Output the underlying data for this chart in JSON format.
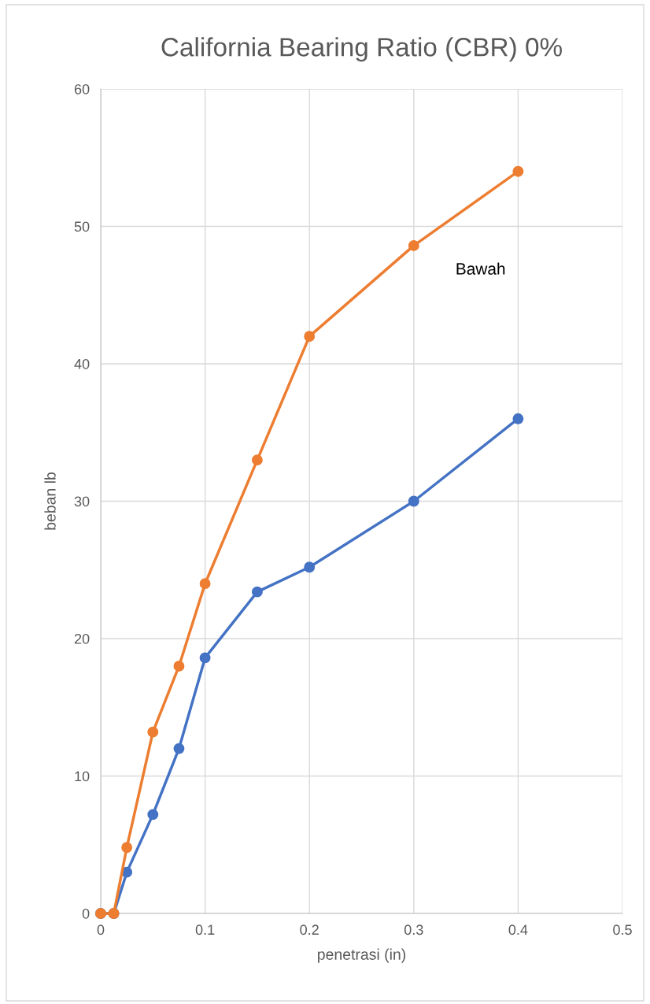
{
  "chart_data": {
    "type": "line",
    "title": "California Bearing Ratio (CBR) 0%",
    "xlabel": "penetrasi (in)",
    "ylabel": "beban lb",
    "x": [
      0,
      0.0125,
      0.025,
      0.05,
      0.075,
      0.1,
      0.15,
      0.2,
      0.3,
      0.4
    ],
    "series": [
      {
        "color": "#4472c4",
        "values": [
          0,
          0,
          3,
          7.2,
          12,
          18.6,
          23.4,
          25.2,
          30,
          36
        ]
      },
      {
        "color": "#ed7d31",
        "values": [
          0,
          0,
          4.8,
          13.2,
          18,
          24,
          33,
          42,
          48.6,
          54
        ]
      }
    ],
    "annotations": [
      "Bawah"
    ],
    "xlim": [
      0,
      0.5
    ],
    "xticks": [
      0,
      0.1,
      0.2,
      0.3,
      0.4,
      0.5
    ],
    "ylim": [
      0,
      60
    ],
    "yticks": [
      0,
      10,
      20,
      30,
      40,
      50,
      60
    ],
    "grid": true,
    "legend": false,
    "marker": "circle",
    "line_style": "solid"
  }
}
